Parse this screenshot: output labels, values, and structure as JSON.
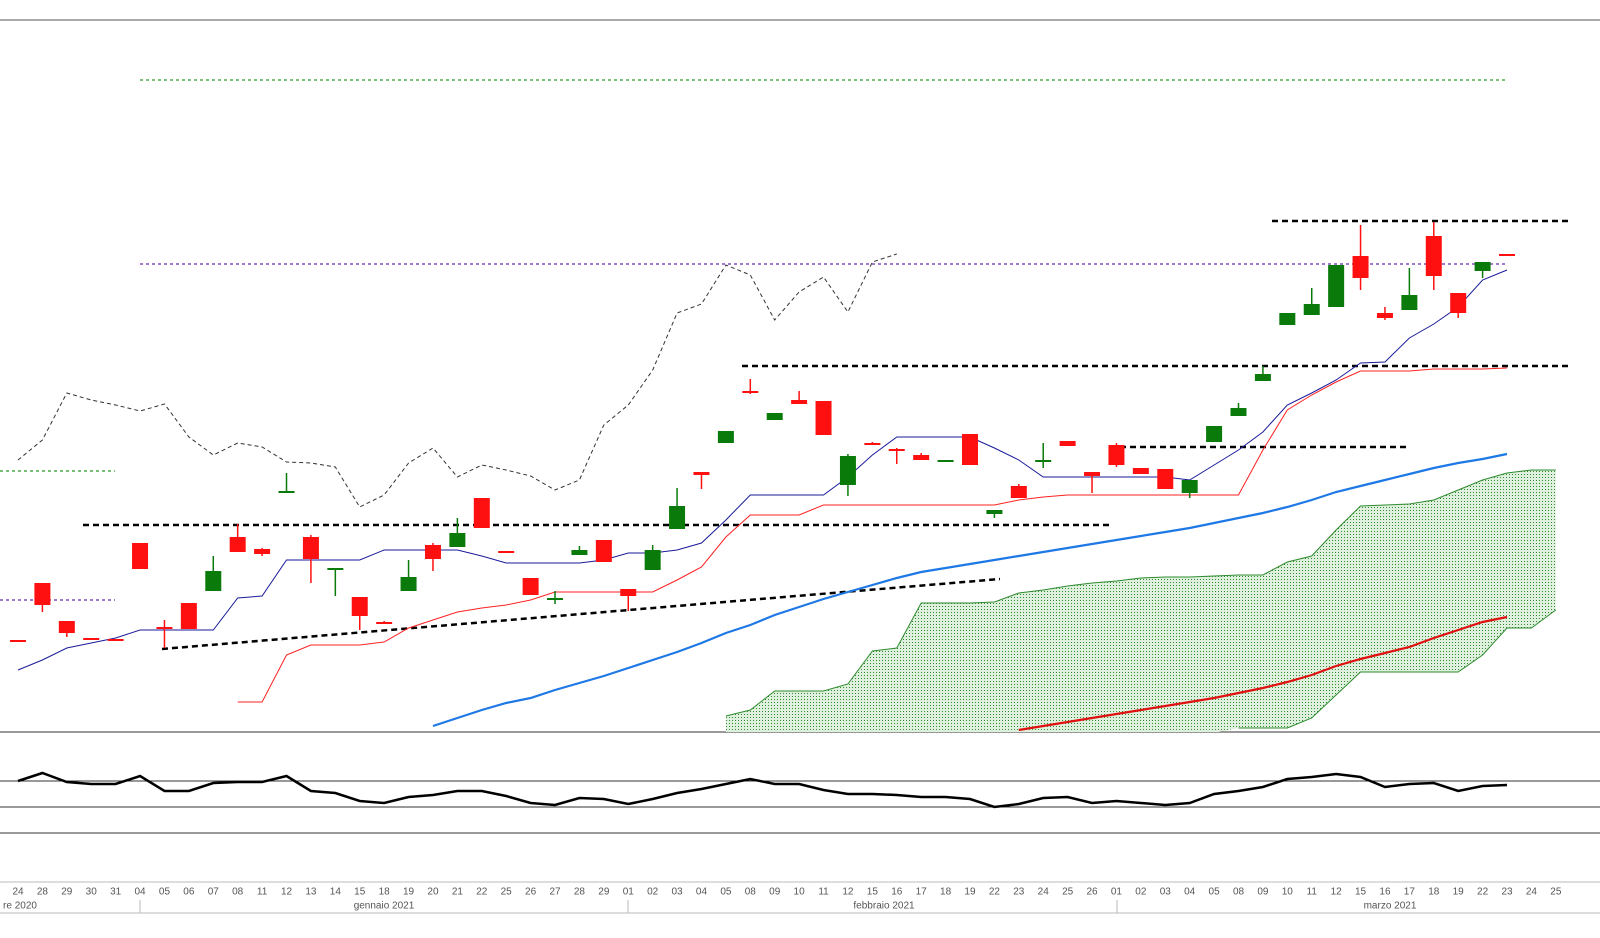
{
  "chart_data": [
    {
      "type": "candlestick",
      "categories": [
        "24",
        "28",
        "29",
        "30",
        "31",
        "04",
        "05",
        "06",
        "07",
        "08",
        "11",
        "12",
        "13",
        "14",
        "15",
        "18",
        "19",
        "20",
        "21",
        "22",
        "25",
        "26",
        "27",
        "28",
        "29",
        "01",
        "02",
        "03",
        "04",
        "05",
        "08",
        "09",
        "10",
        "11",
        "12",
        "15",
        "16",
        "17",
        "18",
        "19",
        "22",
        "23",
        "24",
        "25",
        "26",
        "01",
        "02",
        "03",
        "04",
        "05",
        "08",
        "09",
        "10",
        "11",
        "12",
        "15",
        "16",
        "17",
        "18",
        "19",
        "22",
        "23",
        "24",
        "25"
      ],
      "month_labels": [
        "re 2020",
        "gennaio 2021",
        "febbraio 2021",
        "marzo 2021"
      ],
      "up_color": "#0a7a0a",
      "down_color": "#ff1010",
      "open": [
        92,
        149,
        111,
        94,
        93,
        189,
        105,
        129,
        141,
        195,
        183,
        240,
        195,
        163,
        135,
        110,
        141,
        187,
        185,
        234,
        181,
        154,
        133,
        177,
        192,
        143,
        162,
        203,
        260,
        289,
        341,
        312,
        332,
        331,
        247,
        289,
        283,
        277,
        271,
        298,
        218,
        246,
        271,
        291,
        260,
        287,
        264,
        263,
        239,
        290,
        316,
        351,
        407,
        417,
        425,
        476,
        419,
        422,
        496,
        439,
        461,
        478,
        null,
        null
      ],
      "high": [
        92,
        149,
        111,
        94,
        93,
        189,
        112,
        129,
        176,
        208,
        184,
        259,
        197,
        164,
        135,
        111,
        172,
        189,
        214,
        234,
        181,
        154,
        141,
        186,
        192,
        143,
        187,
        244,
        260,
        301,
        353,
        319,
        341,
        331,
        278,
        290,
        284,
        279,
        272,
        298,
        222,
        248,
        289,
        291,
        260,
        289,
        264,
        263,
        252,
        306,
        329,
        366,
        419,
        444,
        467,
        507,
        425,
        464,
        510,
        439,
        470,
        478,
        null,
        null
      ],
      "low": [
        91,
        120,
        95,
        93,
        92,
        163,
        84,
        103,
        141,
        180,
        176,
        240,
        149,
        136,
        102,
        108,
        141,
        161,
        185,
        204,
        180,
        137,
        128,
        177,
        170,
        121,
        162,
        203,
        243,
        289,
        338,
        312,
        328,
        297,
        236,
        288,
        268,
        272,
        271,
        267,
        214,
        234,
        264,
        286,
        239,
        265,
        258,
        243,
        234,
        290,
        316,
        351,
        407,
        417,
        425,
        442,
        412,
        422,
        442,
        414,
        454,
        477,
        null,
        null
      ],
      "close": [
        91,
        127,
        99,
        93,
        92,
        163,
        103,
        103,
        161,
        180,
        178,
        241,
        173,
        164,
        116,
        109,
        155,
        173,
        199,
        204,
        180,
        137,
        134,
        182,
        170,
        136,
        182,
        226,
        257,
        301,
        340,
        319,
        328,
        297,
        276,
        288,
        282,
        272,
        272,
        267,
        222,
        234,
        272,
        286,
        256,
        267,
        258,
        243,
        252,
        306,
        324,
        358,
        419,
        428,
        467,
        454,
        414,
        437,
        456,
        419,
        470,
        477,
        null,
        null
      ],
      "ylim": [
        0,
        712
      ],
      "lines": [
        {
          "color": "#1a1a9a",
          "style": "thin",
          "values": [
            62,
            72,
            84,
            89,
            94,
            102,
            102,
            102,
            102,
            134,
            136,
            172,
            172,
            172,
            172,
            182,
            182,
            182,
            182,
            176,
            169,
            169,
            169,
            169,
            172,
            179,
            179,
            182,
            189,
            212,
            237,
            237,
            237,
            237,
            255,
            277,
            295,
            295,
            295,
            295,
            284,
            272,
            255,
            255,
            255,
            255,
            255,
            255,
            252,
            267,
            282,
            300,
            327,
            339,
            352,
            369,
            370,
            394,
            408,
            425,
            452,
            462,
            null,
            null
          ]
        },
        {
          "color": "#ff2020",
          "style": "thin",
          "values": [
            null,
            null,
            null,
            null,
            null,
            null,
            null,
            null,
            null,
            30,
            30,
            77,
            87,
            87,
            87,
            90,
            104,
            112,
            120,
            124,
            127,
            132,
            140,
            140,
            140,
            140,
            140,
            152,
            165,
            195,
            217,
            217,
            217,
            227,
            227,
            227,
            227,
            227,
            227,
            227,
            227,
            232,
            235,
            237,
            237,
            237,
            237,
            237,
            237,
            237,
            237,
            282,
            322,
            337,
            350,
            361,
            361,
            361,
            363,
            363,
            363,
            364,
            null,
            null
          ]
        },
        {
          "color": "#333333",
          "style": "dashed",
          "values": [
            272,
            292,
            339,
            332,
            327,
            321,
            328,
            295,
            277,
            289,
            285,
            270,
            269,
            265,
            225,
            237,
            269,
            284,
            255,
            267,
            262,
            256,
            242,
            252,
            307,
            327,
            362,
            419,
            428,
            467,
            457,
            412,
            440,
            455,
            420,
            470,
            478,
            null,
            null,
            null,
            null,
            null,
            null,
            null,
            null,
            null,
            null,
            null,
            null,
            null,
            null,
            null,
            null,
            null,
            null,
            null,
            null,
            null,
            null,
            null,
            null,
            null,
            null,
            null
          ]
        },
        {
          "color": "#1e78e6",
          "style": "thick",
          "values": [
            null,
            null,
            null,
            null,
            null,
            null,
            null,
            null,
            null,
            null,
            null,
            null,
            null,
            null,
            null,
            null,
            null,
            6,
            14,
            22,
            29,
            34,
            42,
            49,
            56,
            64,
            72,
            80,
            89,
            99,
            107,
            117,
            125,
            133,
            140,
            147,
            154,
            160,
            164,
            168,
            172,
            176,
            180,
            184,
            188,
            192,
            196,
            200,
            204,
            209,
            214,
            219,
            225,
            232,
            240,
            246,
            252,
            258,
            264,
            269,
            273,
            278,
            null,
            null
          ]
        },
        {
          "color": "#e01010",
          "style": "thick",
          "values": [
            null,
            null,
            null,
            null,
            null,
            null,
            null,
            null,
            null,
            null,
            null,
            null,
            null,
            null,
            null,
            null,
            null,
            null,
            null,
            null,
            null,
            null,
            null,
            null,
            null,
            null,
            null,
            null,
            null,
            null,
            null,
            null,
            null,
            null,
            null,
            null,
            null,
            null,
            null,
            null,
            null,
            2,
            6,
            10,
            14,
            18,
            22,
            26,
            30,
            34,
            39,
            44,
            50,
            57,
            66,
            73,
            79,
            85,
            94,
            102,
            110,
            115,
            null,
            null
          ]
        }
      ],
      "cloud": {
        "color": "#2e8b2e",
        "upper": [
          null,
          null,
          null,
          null,
          null,
          null,
          null,
          null,
          null,
          null,
          null,
          null,
          null,
          null,
          null,
          null,
          null,
          null,
          null,
          null,
          null,
          null,
          null,
          null,
          null,
          null,
          null,
          null,
          null,
          16,
          22,
          41,
          41,
          41,
          48,
          81,
          84,
          129,
          129,
          129,
          130,
          139,
          142,
          146,
          149,
          151,
          154,
          155,
          155,
          156,
          157,
          157,
          170,
          176,
          202,
          226,
          227,
          228,
          232,
          242,
          252,
          259,
          262,
          262
        ],
        "lower": [
          null,
          null,
          null,
          null,
          null,
          null,
          null,
          null,
          null,
          null,
          null,
          null,
          null,
          null,
          null,
          null,
          null,
          null,
          null,
          null,
          null,
          null,
          null,
          null,
          null,
          null,
          null,
          null,
          null,
          null,
          null,
          null,
          null,
          null,
          null,
          null,
          null,
          null,
          null,
          null,
          null,
          null,
          null,
          null,
          null,
          null,
          null,
          null,
          null,
          null,
          4,
          4,
          4,
          14,
          37,
          60,
          60,
          60,
          60,
          60,
          77,
          104,
          104,
          122
        ]
      },
      "levels": [
        {
          "value": 652,
          "color": "#2a9a2a",
          "style": "dotted"
        },
        {
          "value": 468,
          "color": "#6a2ab0",
          "style": "dotted"
        },
        {
          "value": 261,
          "color": "#2a9a2a",
          "style": "dotted"
        },
        {
          "value": 132,
          "color": "#6a2ab0",
          "style": "dotted"
        },
        {
          "value": 511,
          "color": "#000000",
          "style": "dashed"
        },
        {
          "value": 366,
          "color": "#000000",
          "style": "dashed"
        },
        {
          "value": 285,
          "color": "#000000",
          "style": "dashed"
        },
        {
          "value": 207,
          "color": "#000000",
          "style": "dashed"
        }
      ],
      "trendlines": [
        {
          "values": [
            83,
            153
          ],
          "color": "#000000",
          "style": "dashed"
        }
      ]
    },
    {
      "type": "line",
      "color": "#000000",
      "values": [
        52,
        60,
        51,
        49,
        49,
        57,
        42,
        42,
        50,
        51,
        51,
        57,
        42,
        40,
        32,
        30,
        36,
        38,
        42,
        42,
        37,
        30,
        28,
        35,
        34,
        29,
        34,
        40,
        44,
        49,
        54,
        49,
        49,
        43,
        39,
        39,
        38,
        36,
        36,
        34,
        26,
        29,
        35,
        36,
        30,
        32,
        30,
        28,
        30,
        39,
        42,
        46,
        54,
        56,
        59,
        56,
        46,
        49,
        50,
        42,
        47,
        48,
        null,
        null
      ],
      "ylim": [
        0,
        100
      ],
      "levels": [
        {
          "value": 52
        },
        {
          "value": 26
        }
      ]
    }
  ]
}
